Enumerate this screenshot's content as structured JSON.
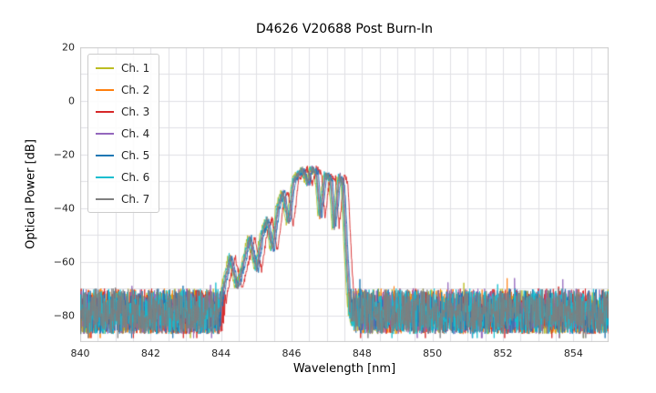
{
  "chart_data": {
    "type": "line",
    "title": "D4626 V20688 Post Burn-In",
    "xlabel": "Wavelength [nm]",
    "ylabel": "Optical Power [dB]",
    "xlim": [
      840,
      855
    ],
    "ylim": [
      -90,
      20
    ],
    "grid": {
      "enabled": true,
      "x_step_nm": 0.5,
      "y_step_db": 10,
      "color": "#dfdfe5",
      "border_color": "#cccccc"
    },
    "legend_position": "upper-left",
    "x_ticks": [
      {
        "v": 840,
        "label": "840"
      },
      {
        "v": 842,
        "label": "842"
      },
      {
        "v": 844,
        "label": "844"
      },
      {
        "v": 846,
        "label": "846"
      },
      {
        "v": 848,
        "label": "848"
      },
      {
        "v": 850,
        "label": "850"
      },
      {
        "v": 852,
        "label": "852"
      },
      {
        "v": 854,
        "label": "854"
      }
    ],
    "y_ticks": [
      {
        "v": 20,
        "label": "20"
      },
      {
        "v": 0,
        "label": "0"
      },
      {
        "v": -20,
        "label": "−20"
      },
      {
        "v": -40,
        "label": "−40"
      },
      {
        "v": -60,
        "label": "−60"
      },
      {
        "v": -80,
        "label": "−80"
      }
    ],
    "noise_floor": {
      "max_dB": -70,
      "min_dB": -87
    },
    "envelope_dB": [
      [
        843.9,
        -85
      ],
      [
        844.05,
        -70
      ],
      [
        844.25,
        -58
      ],
      [
        844.45,
        -70
      ],
      [
        844.6,
        -62
      ],
      [
        844.8,
        -51
      ],
      [
        845.0,
        -63
      ],
      [
        845.15,
        -50
      ],
      [
        845.3,
        -44
      ],
      [
        845.45,
        -56
      ],
      [
        845.6,
        -40
      ],
      [
        845.75,
        -34
      ],
      [
        845.9,
        -46
      ],
      [
        846.05,
        -30
      ],
      [
        846.2,
        -27
      ],
      [
        846.3,
        -25.5
      ],
      [
        846.45,
        -31
      ],
      [
        846.55,
        -25
      ],
      [
        846.7,
        -27
      ],
      [
        846.8,
        -43
      ],
      [
        846.95,
        -27.5
      ],
      [
        847.1,
        -29
      ],
      [
        847.2,
        -47
      ],
      [
        847.35,
        -28
      ],
      [
        847.45,
        -31
      ],
      [
        847.55,
        -58
      ],
      [
        847.65,
        -80
      ],
      [
        847.8,
        -88
      ]
    ],
    "series": [
      {
        "name": "Ch. 1",
        "color": "#bcbd22",
        "x_offset_nm": -0.05
      },
      {
        "name": "Ch. 2",
        "color": "#ff7f0e",
        "x_offset_nm": 0.0
      },
      {
        "name": "Ch. 3",
        "color": "#d62728",
        "x_offset_nm": 0.15
      },
      {
        "name": "Ch. 4",
        "color": "#9467bd",
        "x_offset_nm": 0.03
      },
      {
        "name": "Ch. 5",
        "color": "#1f77b4",
        "x_offset_nm": 0.06
      },
      {
        "name": "Ch. 6",
        "color": "#17becf",
        "x_offset_nm": -0.02
      },
      {
        "name": "Ch. 7",
        "color": "#7f7f7f",
        "x_offset_nm": 0.01
      }
    ]
  }
}
